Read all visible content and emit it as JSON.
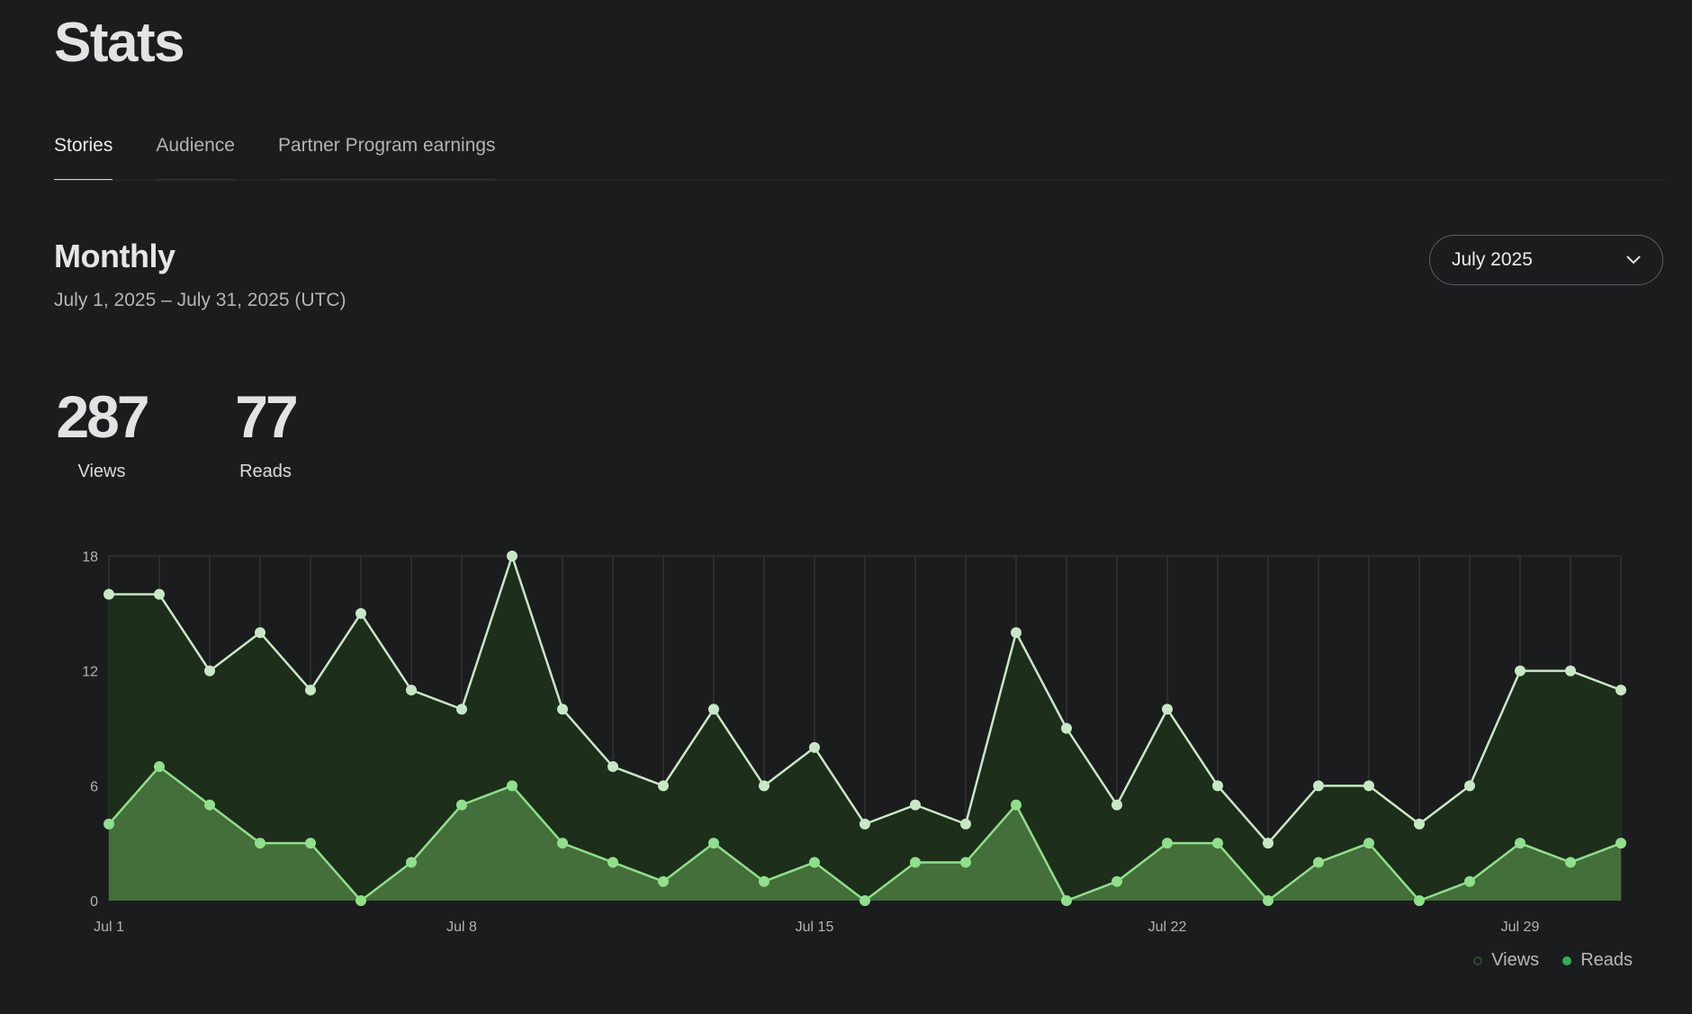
{
  "header": {
    "title": "Stats"
  },
  "tabs": [
    {
      "label": "Stories",
      "active": true
    },
    {
      "label": "Audience",
      "active": false
    },
    {
      "label": "Partner Program earnings",
      "active": false
    }
  ],
  "section": {
    "title": "Monthly",
    "date_range": "July 1, 2025 – July 31, 2025 (UTC)"
  },
  "month_select": {
    "value": "July 2025",
    "icon": "chevron-down-icon"
  },
  "totals": {
    "views": {
      "value": "287",
      "label": "Views"
    },
    "reads": {
      "value": "77",
      "label": "Reads"
    }
  },
  "colors": {
    "views_line": "#c7e8c4",
    "views_fill": "#1d2e1b",
    "reads_line": "#8fe08a",
    "reads_fill": "#446e3a",
    "views_legend": "#2c4a2a",
    "reads_legend": "#2fb34a"
  },
  "chart_data": {
    "type": "area",
    "x": [
      "Jul 1",
      "Jul 2",
      "Jul 3",
      "Jul 4",
      "Jul 5",
      "Jul 6",
      "Jul 7",
      "Jul 8",
      "Jul 9",
      "Jul 10",
      "Jul 11",
      "Jul 12",
      "Jul 13",
      "Jul 14",
      "Jul 15",
      "Jul 16",
      "Jul 17",
      "Jul 18",
      "Jul 19",
      "Jul 20",
      "Jul 21",
      "Jul 22",
      "Jul 23",
      "Jul 24",
      "Jul 25",
      "Jul 26",
      "Jul 27",
      "Jul 28",
      "Jul 29",
      "Jul 30",
      "Jul 31"
    ],
    "x_tick_labels": [
      "Jul 1",
      "Jul 8",
      "Jul 15",
      "Jul 22",
      "Jul 29"
    ],
    "x_tick_indices": [
      0,
      7,
      14,
      21,
      28
    ],
    "y_ticks": [
      "0",
      "6",
      "12",
      "18"
    ],
    "ylim": [
      0,
      18
    ],
    "series": [
      {
        "name": "Views",
        "values": [
          16,
          16,
          12,
          14,
          11,
          15,
          11,
          10,
          18,
          10,
          7,
          6,
          10,
          6,
          8,
          4,
          5,
          4,
          14,
          9,
          5,
          10,
          6,
          3,
          6,
          6,
          4,
          6,
          12,
          12,
          11
        ]
      },
      {
        "name": "Reads",
        "values": [
          4,
          7,
          5,
          3,
          3,
          0,
          2,
          5,
          6,
          3,
          2,
          1,
          3,
          1,
          2,
          0,
          2,
          2,
          5,
          0,
          1,
          3,
          3,
          0,
          2,
          3,
          0,
          1,
          3,
          2,
          3
        ]
      }
    ],
    "legend": [
      "Views",
      "Reads"
    ],
    "legend_position": "bottom-right",
    "grid": true
  }
}
